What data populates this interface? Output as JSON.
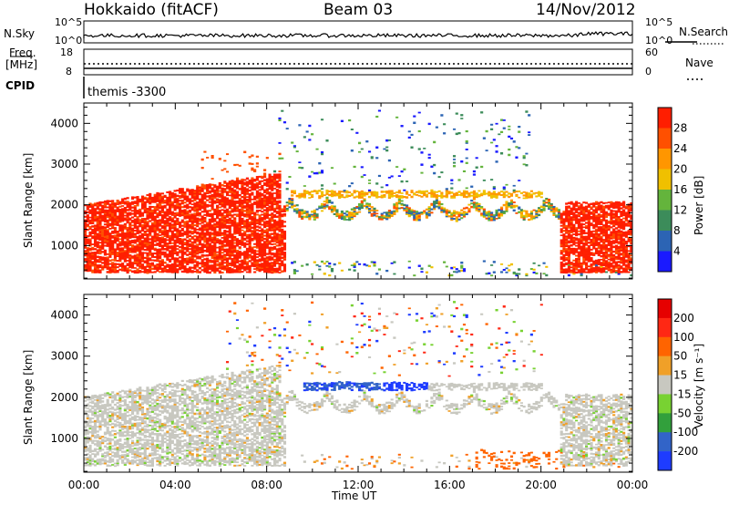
{
  "header": {
    "station": "Hokkaido (fitACF)",
    "beam": "Beam 03",
    "date": "14/Nov/2012"
  },
  "top_panels": {
    "nsky_label": "N.Sky",
    "nsearch_label": "N.Search",
    "nsky_ticks": [
      "10^5",
      "10^0"
    ],
    "freq_label_1": "Freq.",
    "freq_label_2": "[MHz]",
    "freq_ticks": [
      "18",
      "8"
    ],
    "nave_label": "Nave",
    "nave_ticks": [
      "60",
      "0"
    ],
    "cpid_label": "CPID",
    "cpid_value": "themis -3300"
  },
  "colors": {
    "power": [
      "#1a1aff",
      "#2c64b4",
      "#3c8c5a",
      "#64b43c",
      "#f0c000",
      "#ff9600",
      "#ff5000",
      "#ff1e00"
    ],
    "velocity": [
      "#1e3cff",
      "#3264c8",
      "#32a03c",
      "#78d232",
      "#c8c8c0",
      "#f0a028",
      "#ff6400",
      "#ff2814",
      "#e60000"
    ]
  },
  "chart_data": [
    {
      "type": "heatmap",
      "title": "",
      "ylabel": "Slant Range [km]",
      "xlabel": "",
      "ylim": [
        180,
        4500
      ],
      "y_ticks": [
        "4000",
        "3000",
        "2000",
        "1000"
      ],
      "x_ticks": [
        "00:00",
        "04:00",
        "08:00",
        "12:00",
        "16:00",
        "20:00",
        "00:00"
      ],
      "colorbar_title": "Power [dB]",
      "colorbar_ticks": [
        "28",
        "24",
        "20",
        "16",
        "12",
        "8",
        "4"
      ],
      "colorbar_range": [
        0,
        32
      ]
    },
    {
      "type": "heatmap",
      "title": "",
      "ylabel": "Slant Range [km]",
      "xlabel": "Time UT",
      "ylim": [
        180,
        4500
      ],
      "y_ticks": [
        "4000",
        "3000",
        "2000",
        "1000"
      ],
      "x_ticks": [
        "00:00",
        "04:00",
        "08:00",
        "12:00",
        "16:00",
        "20:00",
        "00:00"
      ],
      "colorbar_title": "Velocity [m s⁻¹]",
      "colorbar_ticks": [
        "200",
        "100",
        "50",
        "15",
        "-15",
        "-50",
        "-100",
        "-200"
      ]
    }
  ]
}
